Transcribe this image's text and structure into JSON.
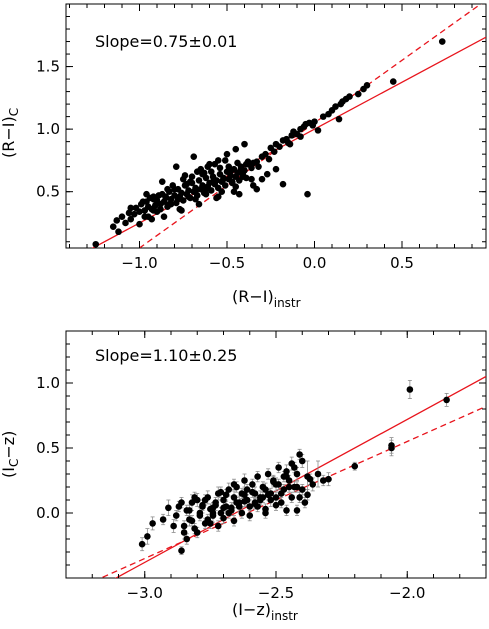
{
  "chart_data": [
    {
      "type": "scatter",
      "annotation": "Slope=0.75±0.01",
      "xlabel": "(R−I)",
      "xlabel_sub": "instr",
      "ylabel": "(R−I)",
      "ylabel_sub": "C",
      "xlim": [
        -1.42,
        0.98
      ],
      "ylim": [
        0.05,
        2.0
      ],
      "xticks": [
        -1.0,
        -0.5,
        0.0,
        0.5
      ],
      "xtick_labels": [
        "−1.0",
        "−0.5",
        "0.0",
        "0.5"
      ],
      "yticks": [
        0.5,
        1.0,
        1.5
      ],
      "ytick_labels": [
        "0.5",
        "1.0",
        "1.5"
      ],
      "grid": false,
      "colors": {
        "points": "#000000",
        "fit": "#e8141c"
      },
      "series": [
        {
          "x": [
            -1.25,
            -1.15,
            -1.13,
            -1.12,
            -1.1,
            -1.08,
            -1.06,
            -1.05,
            -1.03,
            -1.02,
            -1.0,
            -0.99,
            -0.97,
            -0.96,
            -0.95,
            -0.93,
            -0.92,
            -0.91,
            -0.9,
            -0.88,
            -0.87,
            -0.86,
            -0.85,
            -0.84,
            -0.83,
            -0.82,
            -0.8,
            -0.79,
            -0.78,
            -0.77,
            -0.76,
            -0.75,
            -0.74,
            -0.73,
            -0.72,
            -0.71,
            -0.7,
            -0.69,
            -0.68,
            -0.67,
            -0.66,
            -0.65,
            -0.64,
            -0.63,
            -0.62,
            -0.61,
            -0.6,
            -0.59,
            -0.58,
            -0.57,
            -0.56,
            -0.55,
            -0.54,
            -0.53,
            -0.52,
            -0.51,
            -0.5,
            -0.49,
            -0.48,
            -0.47,
            -0.46,
            -0.45,
            -0.44,
            -0.43,
            -0.42,
            -0.41,
            -0.4,
            -0.39,
            -0.38,
            -0.36,
            -0.35,
            -0.33,
            -0.32,
            -0.3,
            -0.28,
            -0.26,
            -0.25,
            -0.23,
            -0.22,
            -0.2,
            -0.18,
            -0.16,
            -0.15,
            -0.13,
            -0.12,
            -0.1,
            -0.08,
            -0.06,
            -0.05,
            -0.03,
            -0.01,
            0.0,
            0.02,
            0.05,
            0.08,
            0.1,
            0.12,
            0.15,
            0.16,
            0.18,
            0.2,
            0.25,
            0.28,
            0.3,
            0.45,
            0.73,
            -0.95,
            -0.9,
            -0.85,
            -0.8,
            -0.75,
            -0.7,
            -0.65,
            -0.6,
            -0.55,
            -0.5,
            -0.45,
            -0.4,
            -1.0,
            -0.97,
            -0.92,
            -0.88,
            -0.82,
            -0.78,
            -0.72,
            -0.68,
            -0.62,
            -0.58,
            -0.52,
            -0.48,
            -0.42,
            -0.38,
            -0.93,
            -0.86,
            -0.76,
            -0.66,
            -0.56,
            -0.46,
            -1.05,
            -0.98,
            -0.89,
            -0.81,
            -0.71,
            -0.64,
            -0.54,
            -0.44,
            -0.35,
            -0.94,
            -0.84,
            -0.74,
            -0.67,
            -0.61,
            -0.53,
            -0.47,
            -0.43,
            -0.36,
            -0.96,
            -0.87,
            -0.79,
            -0.69,
            -0.63,
            -0.57,
            -0.51,
            -0.41,
            -0.92,
            -0.83,
            -0.77,
            -0.73,
            -0.68,
            -0.62,
            -0.59,
            -0.55,
            -0.49,
            -0.45,
            -0.39,
            -0.33,
            -0.3,
            -0.27,
            -0.22,
            -0.18,
            -0.14,
            -0.08,
            -0.04,
            0.14
          ],
          "y": [
            0.08,
            0.22,
            0.27,
            0.18,
            0.3,
            0.25,
            0.33,
            0.28,
            0.32,
            0.37,
            0.34,
            0.4,
            0.35,
            0.42,
            0.38,
            0.36,
            0.44,
            0.39,
            0.43,
            0.4,
            0.48,
            0.42,
            0.45,
            0.38,
            0.5,
            0.44,
            0.47,
            0.41,
            0.52,
            0.46,
            0.49,
            0.43,
            0.55,
            0.48,
            0.51,
            0.45,
            0.57,
            0.5,
            0.53,
            0.47,
            0.59,
            0.52,
            0.55,
            0.49,
            0.61,
            0.54,
            0.57,
            0.51,
            0.62,
            0.56,
            0.59,
            0.53,
            0.64,
            0.58,
            0.61,
            0.55,
            0.66,
            0.6,
            0.63,
            0.57,
            0.68,
            0.62,
            0.65,
            0.59,
            0.7,
            0.64,
            0.67,
            0.61,
            0.72,
            0.69,
            0.73,
            0.74,
            0.7,
            0.78,
            0.8,
            0.76,
            0.85,
            0.82,
            0.88,
            0.86,
            0.91,
            0.92,
            0.89,
            0.95,
            0.98,
            0.96,
            1.0,
            1.02,
            1.04,
            1.05,
            1.03,
            1.06,
            0.99,
            1.1,
            1.12,
            1.15,
            1.18,
            1.2,
            1.22,
            1.24,
            1.26,
            1.28,
            1.32,
            1.35,
            1.38,
            1.7,
            0.3,
            0.34,
            0.46,
            0.52,
            0.6,
            0.62,
            0.68,
            0.72,
            0.75,
            0.8,
            0.84,
            0.88,
            0.24,
            0.3,
            0.35,
            0.36,
            0.4,
            0.44,
            0.46,
            0.5,
            0.52,
            0.58,
            0.6,
            0.66,
            0.68,
            0.74,
            0.28,
            0.3,
            0.35,
            0.4,
            0.45,
            0.5,
            0.37,
            0.42,
            0.47,
            0.55,
            0.58,
            0.64,
            0.69,
            0.73,
            0.55,
            0.45,
            0.52,
            0.63,
            0.66,
            0.7,
            0.5,
            0.58,
            0.48,
            0.6,
            0.48,
            0.58,
            0.7,
            0.78,
            0.65,
            0.72,
            0.75,
            0.62,
            0.46,
            0.4,
            0.36,
            0.56,
            0.44,
            0.48,
            0.66,
            0.46,
            0.7,
            0.54,
            0.72,
            0.52,
            0.6,
            0.64,
            0.68,
            0.56,
            0.88,
            0.94,
            0.48,
            1.08
          ]
        }
      ],
      "fits": [
        {
          "style": "solid",
          "slope": 0.75,
          "intercept": 1.0
        },
        {
          "style": "dashed",
          "slope": 1.0,
          "intercept": 1.05
        }
      ]
    },
    {
      "type": "scatter",
      "annotation": "Slope=1.10±0.25",
      "xlabel": "(I−z)",
      "xlabel_sub": "instr",
      "ylabel": "(I",
      "ylabel_sub": "C",
      "ylabel_after": "−z)",
      "xlim": [
        -3.3,
        -1.7
      ],
      "ylim": [
        -0.5,
        1.4
      ],
      "xticks": [
        -3.0,
        -2.5,
        -2.0
      ],
      "xtick_labels": [
        "−3.0",
        "−2.5",
        "−2.0"
      ],
      "yticks": [
        0.0,
        0.5,
        1.0
      ],
      "ytick_labels": [
        "0.0",
        "0.5",
        "1.0"
      ],
      "grid": false,
      "colors": {
        "points": "#000000",
        "fit": "#e8141c",
        "errorbars": "#8c8c8c"
      },
      "series": [
        {
          "x": [
            -3.01,
            -2.99,
            -2.97,
            -2.93,
            -2.91,
            -2.89,
            -2.87,
            -2.86,
            -2.85,
            -2.84,
            -2.83,
            -2.82,
            -2.81,
            -2.8,
            -2.79,
            -2.78,
            -2.77,
            -2.76,
            -2.75,
            -2.74,
            -2.73,
            -2.72,
            -2.71,
            -2.7,
            -2.69,
            -2.68,
            -2.67,
            -2.66,
            -2.65,
            -2.64,
            -2.63,
            -2.62,
            -2.61,
            -2.6,
            -2.59,
            -2.58,
            -2.57,
            -2.56,
            -2.55,
            -2.54,
            -2.53,
            -2.52,
            -2.51,
            -2.5,
            -2.49,
            -2.48,
            -2.47,
            -2.46,
            -2.45,
            -2.44,
            -2.43,
            -2.42,
            -2.41,
            -2.4,
            -2.38,
            -2.36,
            -2.34,
            -2.32,
            -2.3,
            -2.2,
            -2.06,
            -2.06,
            -1.99,
            -1.85,
            -2.84,
            -2.8,
            -2.76,
            -2.72,
            -2.68,
            -2.64,
            -2.6,
            -2.56,
            -2.52,
            -2.48,
            -2.44,
            -2.4,
            -2.83,
            -2.78,
            -2.74,
            -2.7,
            -2.66,
            -2.62,
            -2.58,
            -2.54,
            -2.5,
            -2.46,
            -2.42,
            -2.38,
            -2.88,
            -2.82,
            -2.77,
            -2.73,
            -2.69,
            -2.65,
            -2.61,
            -2.57,
            -2.53,
            -2.49,
            -2.45,
            -2.41,
            -2.86,
            -2.81,
            -2.75,
            -2.71,
            -2.67,
            -2.63,
            -2.59,
            -2.55,
            -2.51,
            -2.47,
            -2.43,
            -2.39,
            -2.85,
            -2.79,
            -2.74,
            -2.7,
            -2.66,
            -2.62,
            -2.58,
            -2.54,
            -2.5,
            -2.46,
            -2.42,
            -2.37
          ],
          "y": [
            -0.24,
            -0.18,
            -0.08,
            -0.05,
            0.04,
            -0.1,
            0.05,
            -0.29,
            -0.15,
            0.02,
            -0.05,
            0.08,
            -0.12,
            0.1,
            0.0,
            0.05,
            -0.08,
            0.12,
            0.03,
            -0.02,
            0.08,
            0.15,
            0.0,
            0.1,
            0.05,
            0.18,
            0.02,
            0.12,
            0.2,
            0.08,
            0.15,
            0.25,
            0.1,
            0.05,
            0.22,
            0.15,
            0.28,
            0.12,
            0.2,
            0.18,
            0.3,
            0.1,
            0.25,
            0.22,
            0.35,
            0.15,
            0.28,
            0.32,
            0.25,
            0.38,
            0.2,
            0.3,
            0.45,
            0.4,
            0.28,
            0.22,
            0.3,
            0.25,
            0.26,
            0.36,
            0.5,
            0.52,
            0.95,
            0.87,
            -0.2,
            -0.15,
            -0.05,
            -0.1,
            0.0,
            0.05,
            -0.02,
            0.1,
            0.15,
            0.08,
            0.12,
            0.18,
            0.02,
            0.06,
            0.0,
            0.04,
            -0.06,
            0.09,
            0.07,
            0.03,
            0.12,
            0.02,
            0.2,
            0.14,
            -0.02,
            -0.06,
            0.1,
            0.06,
            0.14,
            0.08,
            0.18,
            0.05,
            0.14,
            0.22,
            0.2,
            0.12,
            0.08,
            0.12,
            -0.08,
            0.16,
            0.04,
            0.0,
            0.16,
            0.12,
            0.24,
            0.18,
            0.35,
            0.08,
            -0.1,
            -0.02,
            0.04,
            -0.04,
            0.22,
            0.14,
            0.08,
            0.0,
            0.06,
            0.28,
            0.02,
            0.26
          ],
          "yerr": [
            0.05,
            0.06,
            0.05,
            0.04,
            0.06,
            0.05,
            0.04,
            0.03,
            0.05,
            0.04,
            0.05,
            0.06,
            0.04,
            0.05,
            0.04,
            0.05,
            0.04,
            0.05,
            0.04,
            0.05,
            0.04,
            0.05,
            0.04,
            0.05,
            0.04,
            0.05,
            0.04,
            0.05,
            0.04,
            0.05,
            0.04,
            0.05,
            0.04,
            0.05,
            0.04,
            0.05,
            0.04,
            0.05,
            0.04,
            0.05,
            0.04,
            0.05,
            0.04,
            0.05,
            0.04,
            0.05,
            0.04,
            0.05,
            0.04,
            0.05,
            0.04,
            0.05,
            0.04,
            0.05,
            0.12,
            0.05,
            0.1,
            0.04,
            0.05,
            0.03,
            0.06,
            0.06,
            0.07,
            0.05,
            0.04,
            0.04,
            0.04,
            0.04,
            0.04,
            0.04,
            0.04,
            0.04,
            0.04,
            0.04,
            0.04,
            0.04,
            0.04,
            0.04,
            0.04,
            0.04,
            0.04,
            0.04,
            0.04,
            0.04,
            0.04,
            0.04,
            0.04,
            0.04,
            0.04,
            0.04,
            0.04,
            0.04,
            0.04,
            0.04,
            0.04,
            0.04,
            0.04,
            0.04,
            0.04,
            0.04,
            0.04,
            0.04,
            0.04,
            0.04,
            0.04,
            0.04,
            0.04,
            0.04,
            0.04,
            0.04,
            0.04,
            0.04,
            0.04,
            0.04,
            0.04,
            0.04,
            0.04,
            0.04,
            0.04,
            0.04,
            0.04,
            0.04,
            0.04,
            0.04
          ]
        }
      ],
      "fits": [
        {
          "style": "solid",
          "slope": 1.1,
          "intercept": 2.92
        },
        {
          "style": "dashed",
          "slope": 0.9,
          "intercept": 2.35
        }
      ]
    }
  ]
}
